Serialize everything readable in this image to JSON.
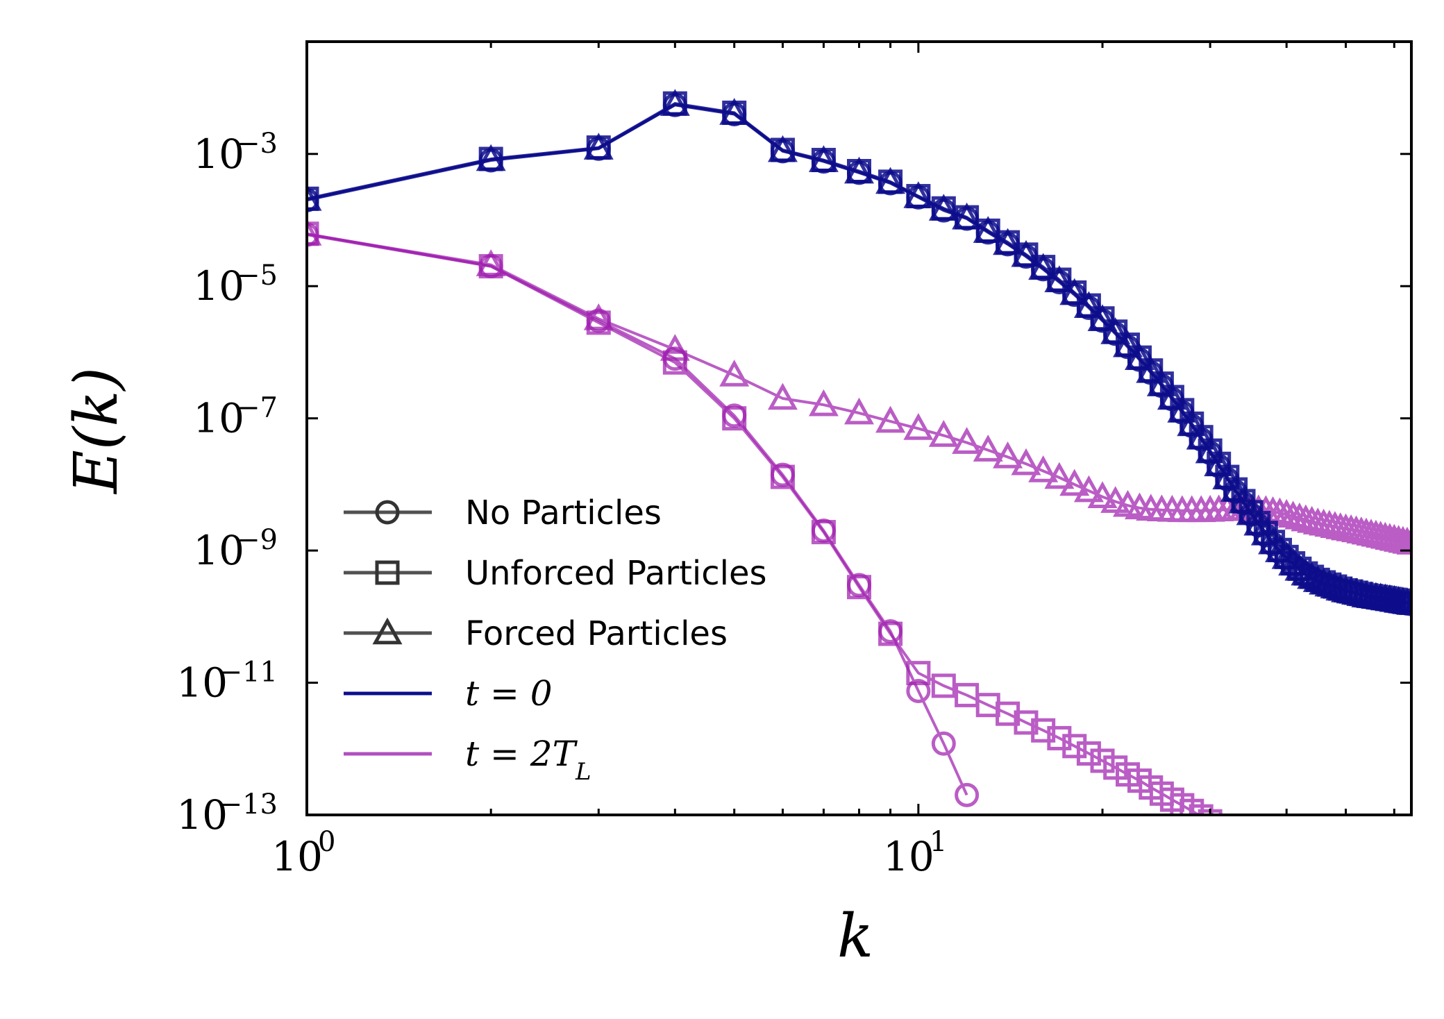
{
  "chart_data": {
    "type": "line",
    "xlabel": "E(k)",
    "xlabel_x": "k",
    "ylabel": "E(k)",
    "xscale": "log",
    "yscale": "log",
    "xlim": [
      1,
      64
    ],
    "ylim": [
      1e-13,
      0.05
    ],
    "x_ticks": [
      {
        "base": "10",
        "exp": "0",
        "value": 1
      },
      {
        "base": "10",
        "exp": "1",
        "value": 10
      }
    ],
    "y_ticks": [
      {
        "base": "10",
        "exp": "−3",
        "value": 0.001
      },
      {
        "base": "10",
        "exp": "−5",
        "value": 1e-05
      },
      {
        "base": "10",
        "exp": "−7",
        "value": 1e-07
      },
      {
        "base": "10",
        "exp": "−9",
        "value": 1e-09
      },
      {
        "base": "10",
        "exp": "−11",
        "value": 1e-11
      },
      {
        "base": "10",
        "exp": "−13",
        "value": 1e-13
      }
    ],
    "grid": false,
    "legend_position": "lower-left",
    "colors": {
      "t0": "#0d0d8c",
      "t2": "#a01fb0"
    },
    "legend": [
      {
        "label": "No Particles",
        "marker": "circle",
        "kind": "text"
      },
      {
        "label": "Unforced Particles",
        "marker": "square",
        "kind": "text"
      },
      {
        "label": "Forced Particles",
        "marker": "triangle",
        "kind": "text"
      },
      {
        "label": "t = 0",
        "kind": "math",
        "color": "#0d0d8c"
      },
      {
        "label": "t = 2T",
        "sub": "L",
        "kind": "math",
        "color": "#b050c0"
      }
    ],
    "series": [
      {
        "name": "No Particles, t = 0",
        "time": "t0",
        "marker": "circle",
        "x": [
          1,
          2,
          3,
          4,
          5,
          6,
          7,
          8,
          9,
          10,
          11,
          12,
          13,
          14,
          15,
          16,
          17,
          18,
          19,
          20,
          21,
          22,
          23,
          24,
          25,
          26,
          27,
          28,
          29,
          30,
          31,
          32,
          33,
          34,
          35,
          36,
          37,
          38,
          39,
          40,
          41,
          42,
          43,
          44,
          45,
          46,
          47,
          48,
          49,
          50,
          51,
          52,
          53,
          54,
          55,
          56,
          57,
          58,
          59,
          60,
          61,
          62,
          63,
          64
        ],
        "y": [
          0.0002,
          0.0008,
          0.0012,
          0.0055,
          0.004,
          0.0011,
          0.00077,
          0.00052,
          0.00036,
          0.00022,
          0.00014,
          0.000105,
          6.5e-05,
          4.3e-05,
          2.8e-05,
          1.8e-05,
          1.15e-05,
          7.4e-06,
          4.7e-06,
          3e-06,
          1.9e-06,
          1.2e-06,
          7.7e-07,
          4.9e-07,
          3.1e-07,
          1.95e-07,
          1.23e-07,
          7.7e-08,
          4.8e-08,
          3e-08,
          1.9e-08,
          1.2e-08,
          7.8e-09,
          5.2e-09,
          3.5e-09,
          2.4e-09,
          1.7e-09,
          1.25e-09,
          9.5e-10,
          7.5e-10,
          6e-10,
          5e-10,
          4.3e-10,
          3.8e-10,
          3.4e-10,
          3.1e-10,
          2.9e-10,
          2.7e-10,
          2.5e-10,
          2.4e-10,
          2.3e-10,
          2.2e-10,
          2.1e-10,
          2e-10,
          1.95e-10,
          1.9e-10,
          1.85e-10,
          1.8e-10,
          1.75e-10,
          1.7e-10,
          1.65e-10,
          1.62e-10,
          1.58e-10,
          1.55e-10
        ]
      },
      {
        "name": "Unforced Particles, t = 0",
        "time": "t0",
        "marker": "square",
        "x": [
          1,
          2,
          3,
          4,
          5,
          6,
          7,
          8,
          9,
          10,
          11,
          12,
          13,
          14,
          15,
          16,
          17,
          18,
          19,
          20,
          21,
          22,
          23,
          24,
          25,
          26,
          27,
          28,
          29,
          30,
          31,
          32,
          33,
          34,
          35,
          36,
          37,
          38,
          39,
          40,
          41,
          42,
          43,
          44,
          45,
          46,
          47,
          48,
          49,
          50,
          51,
          52,
          53,
          54,
          55,
          56,
          57,
          58,
          59,
          60,
          61,
          62,
          63,
          64
        ],
        "y": [
          0.00021,
          0.00084,
          0.00125,
          0.0058,
          0.0042,
          0.00115,
          0.00081,
          0.00055,
          0.00038,
          0.00023,
          0.00015,
          0.00011,
          6.9e-05,
          4.6e-05,
          3e-05,
          1.95e-05,
          1.25e-05,
          8e-06,
          5.1e-06,
          3.25e-06,
          2.05e-06,
          1.3e-06,
          8.3e-07,
          5.3e-07,
          3.35e-07,
          2.1e-07,
          1.33e-07,
          8.3e-08,
          5.2e-08,
          3.25e-08,
          2.05e-08,
          1.3e-08,
          8.4e-09,
          5.6e-09,
          3.8e-09,
          2.6e-09,
          1.85e-09,
          1.35e-09,
          1.02e-09,
          8e-10,
          6.4e-10,
          5.3e-10,
          4.5e-10,
          4e-10,
          3.6e-10,
          3.3e-10,
          3.05e-10,
          2.85e-10,
          2.65e-10,
          2.5e-10,
          2.4e-10,
          2.3e-10,
          2.2e-10,
          2.1e-10,
          2.05e-10,
          2e-10,
          1.95e-10,
          1.9e-10,
          1.85e-10,
          1.8e-10,
          1.75e-10,
          1.7e-10,
          1.66e-10,
          1.62e-10
        ]
      },
      {
        "name": "Forced Particles, t = 0",
        "time": "t0",
        "marker": "triangle",
        "x": [
          1,
          2,
          3,
          4,
          5,
          6,
          7,
          8,
          9,
          10,
          11,
          12,
          13,
          14,
          15,
          16,
          17,
          18,
          19,
          20,
          21,
          22,
          23,
          24,
          25,
          26,
          27,
          28,
          29,
          30,
          31,
          32,
          33,
          34,
          35,
          36,
          37,
          38,
          39,
          40,
          41,
          42,
          43,
          44,
          45,
          46,
          47,
          48,
          49,
          50,
          51,
          52,
          53,
          54,
          55,
          56,
          57,
          58,
          59,
          60,
          61,
          62,
          63,
          64
        ],
        "y": [
          0.000205,
          0.00082,
          0.00122,
          0.0056,
          0.0041,
          0.00112,
          0.00079,
          0.00053,
          0.00037,
          0.000225,
          0.000145,
          0.000107,
          6.7e-05,
          4.4e-05,
          2.9e-05,
          1.85e-05,
          1.2e-05,
          7.7e-06,
          4.9e-06,
          3.1e-06,
          1.97e-06,
          1.25e-06,
          8e-07,
          5.1e-07,
          3.2e-07,
          2e-07,
          1.28e-07,
          8e-08,
          5e-08,
          3.1e-08,
          1.97e-08,
          1.25e-08,
          8.1e-09,
          5.4e-09,
          3.6e-09,
          2.5e-09,
          1.78e-09,
          1.3e-09,
          9.9e-10,
          7.8e-10,
          6.2e-10,
          5.2e-10,
          4.4e-10,
          3.9e-10,
          3.5e-10,
          3.2e-10,
          3e-10,
          2.8e-10,
          2.6e-10,
          2.45e-10,
          2.35e-10,
          2.25e-10,
          2.15e-10,
          2.05e-10,
          2e-10,
          1.95e-10,
          1.9e-10,
          1.85e-10,
          1.8e-10,
          1.75e-10,
          1.7e-10,
          1.66e-10,
          1.62e-10,
          1.58e-10
        ]
      },
      {
        "name": "No Particles, t = 2T_L",
        "time": "t2",
        "marker": "circle",
        "x": [
          1,
          2,
          3,
          4,
          5,
          6,
          7,
          8,
          9,
          10,
          11,
          12
        ],
        "y": [
          6e-05,
          2e-05,
          3e-06,
          8e-07,
          1.1e-07,
          1.4e-08,
          2e-09,
          3e-10,
          6e-11,
          7.5e-12,
          1.2e-12,
          2e-13
        ]
      },
      {
        "name": "Unforced Particles, t = 2T_L",
        "time": "t2",
        "marker": "square",
        "x": [
          1,
          2,
          3,
          4,
          5,
          6,
          7,
          8,
          9,
          10,
          11,
          12,
          13,
          14,
          15,
          16,
          17,
          18,
          19,
          20,
          21,
          22,
          23,
          24,
          25,
          26,
          27,
          28,
          29,
          30,
          31,
          32,
          33,
          34
        ],
        "y": [
          6.2e-05,
          2e-05,
          2.8e-06,
          7e-07,
          1e-07,
          1.3e-08,
          1.9e-09,
          2.8e-10,
          5.5e-11,
          1.4e-11,
          9e-12,
          6.5e-12,
          4.6e-12,
          3.4e-12,
          2.5e-12,
          1.9e-12,
          1.45e-12,
          1.1e-12,
          8.5e-13,
          6.6e-13,
          5.2e-13,
          4.1e-13,
          3.3e-13,
          2.6e-13,
          2.1e-13,
          1.7e-13,
          1.4e-13,
          1.15e-13,
          9.5e-14,
          8e-14,
          6.6e-14,
          5.5e-14,
          4.6e-14,
          3.9e-14
        ]
      },
      {
        "name": "Forced Particles, t = 2T_L",
        "time": "t2",
        "marker": "triangle",
        "x": [
          1,
          2,
          3,
          4,
          5,
          6,
          7,
          8,
          9,
          10,
          11,
          12,
          13,
          14,
          15,
          16,
          17,
          18,
          19,
          20,
          21,
          22,
          23,
          24,
          25,
          26,
          27,
          28,
          29,
          30,
          31,
          32,
          33,
          34,
          35,
          36,
          37,
          38,
          39,
          40,
          41,
          42,
          43,
          44,
          45,
          46,
          47,
          48,
          49,
          50,
          51,
          52,
          53,
          54,
          55,
          56,
          57,
          58,
          59,
          60,
          61,
          62,
          63,
          64
        ],
        "y": [
          6.1e-05,
          2.1e-05,
          3.2e-06,
          1.1e-06,
          4.5e-07,
          2e-07,
          1.6e-07,
          1.2e-07,
          9e-08,
          7e-08,
          5.5e-08,
          4.3e-08,
          3.3e-08,
          2.6e-08,
          2.05e-08,
          1.6e-08,
          1.27e-08,
          1e-08,
          8e-09,
          6.5e-09,
          5.5e-09,
          4.8e-09,
          4.4e-09,
          4.2e-09,
          4.1e-09,
          4.05e-09,
          4e-09,
          4e-09,
          4e-09,
          4.05e-09,
          4.1e-09,
          4.15e-09,
          4.2e-09,
          4.2e-09,
          4.15e-09,
          4.1e-09,
          4e-09,
          3.85e-09,
          3.7e-09,
          3.5e-09,
          3.3e-09,
          3.1e-09,
          2.9e-09,
          2.75e-09,
          2.6e-09,
          2.5e-09,
          2.4e-09,
          2.3e-09,
          2.2e-09,
          2.12e-09,
          2.05e-09,
          1.98e-09,
          1.9e-09,
          1.83e-09,
          1.76e-09,
          1.7e-09,
          1.64e-09,
          1.58e-09,
          1.52e-09,
          1.47e-09,
          1.42e-09,
          1.37e-09,
          1.33e-09,
          1.29e-09
        ]
      }
    ]
  }
}
